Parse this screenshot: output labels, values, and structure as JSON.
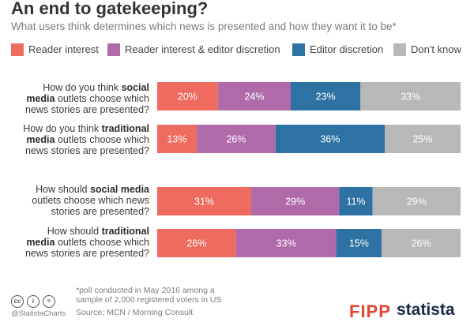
{
  "header": {
    "title": "An end to gatekeeping?",
    "subtitle": "What users think determines which news is presented and how they want it to be*"
  },
  "chart_data": {
    "type": "bar",
    "stacked": true,
    "orientation": "horizontal",
    "series": [
      {
        "name": "Reader interest",
        "color": "#ef6a5f",
        "values": [
          20,
          13,
          31,
          26
        ]
      },
      {
        "name": "Reader interest & editor discretion",
        "color": "#b06aa9",
        "values": [
          24,
          26,
          29,
          33
        ]
      },
      {
        "name": "Editor discretion",
        "color": "#2e72a3",
        "values": [
          23,
          36,
          11,
          15
        ]
      },
      {
        "name": "Don't know",
        "color": "#b8b8b8",
        "values": [
          33,
          25,
          29,
          26
        ]
      }
    ],
    "categories": [
      "How do you think social media outlets choose which news stories are presented?",
      "How do you think traditional media outlets choose which news stories are presented?",
      "How should social media outlets choose which news stories are presented?",
      "How should traditional media outlets choose which news stories are presented?"
    ],
    "value_suffix": "%",
    "legend": "top"
  },
  "labels": {
    "q1": {
      "a": "How do you think ",
      "b": "social",
      "c": "media",
      "d": " outlets choose which",
      "e": "news stories are presented?"
    },
    "q2": {
      "a": "How do you think ",
      "b": "traditional",
      "c": "media",
      "d": " outlets choose which",
      "e": "news stories are presented?"
    },
    "q3": {
      "a": "How should ",
      "b": "social media",
      "c": "outlets choose which news",
      "d": "stories are presented?"
    },
    "q4": {
      "a": "How should ",
      "b": "traditional",
      "c": "media",
      "d": " outlets choose which",
      "e": "news stories are presented?"
    }
  },
  "footer": {
    "note_line1": "*poll conducted in May 2016 among a",
    "note_line2": "sample of 2,000 registered voters in US",
    "source": "Source: MCN / Morning Consult",
    "handle": "@StatistaCharts",
    "cc_icons": [
      "cc-icon",
      "by-icon",
      "nd-icon"
    ]
  },
  "logos": {
    "fipp": "FIPP",
    "statista": "statista"
  }
}
